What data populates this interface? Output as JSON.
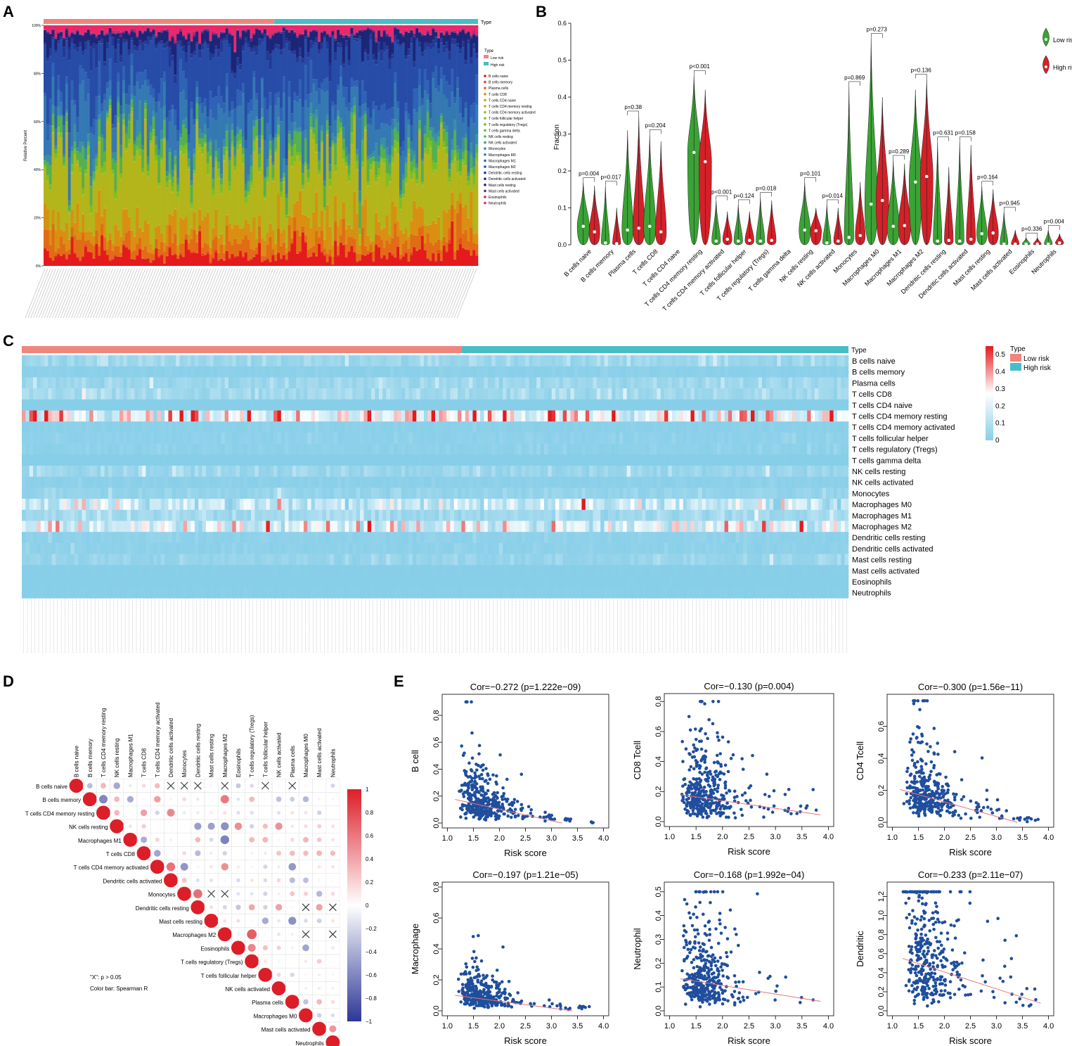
{
  "figure": {
    "panel_labels": [
      "A",
      "B",
      "C",
      "D",
      "E"
    ],
    "cell_types": [
      "B cells naive",
      "B cells memory",
      "Plasma cells",
      "T cells CD8",
      "T cells CD4 naive",
      "T cells CD4 memory resting",
      "T cells CD4 memory activated",
      "T cells follicular helper",
      "T cells regulatory (Tregs)",
      "T cells gamma delta",
      "NK cells resting",
      "NK cells activated",
      "Monocytes",
      "Macrophages M0",
      "Macrophages M1",
      "Macrophages M2",
      "Dendritic cells resting",
      "Dendritic cells activated",
      "Mast cells resting",
      "Mast cells activated",
      "Eosinophils",
      "Neutrophils"
    ],
    "cell_colors": [
      "#e41a1c",
      "#e8452a",
      "#e26b16",
      "#d98f12",
      "#c9a515",
      "#b3b51b",
      "#a2bb1f",
      "#8fbf22",
      "#7cbe26",
      "#6aba2a",
      "#55b04e",
      "#42a07a",
      "#3a8fa0",
      "#3579b3",
      "#2f62b4",
      "#274ca8",
      "#223a95",
      "#1f2d83",
      "#1c2578",
      "#5a2b86",
      "#c2246d",
      "#e8296a"
    ],
    "group_colors": {
      "low": "#f0857c",
      "high": "#48bdc7"
    }
  },
  "chart_data": [
    {
      "panel": "A",
      "type": "bar",
      "subtype": "stacked-percent",
      "ylabel": "Relative Percent",
      "yticks": [
        "0%",
        "20%",
        "40%",
        "60%",
        "80%",
        "100%"
      ],
      "annotation_label": "Type",
      "legend_title": "Type",
      "legend_groups": [
        "Low risk",
        "High risk"
      ],
      "n_samples": 500,
      "low_risk_fraction": 0.53,
      "approx_mean_composition": {
        "B cells naive": 0.05,
        "Plasma cells": 0.05,
        "T cells CD8": 0.08,
        "T cells CD4 memory resting": 0.24,
        "T cells regulatory (Tregs)": 0.02,
        "NK cells resting": 0.05,
        "Monocytes": 0.03,
        "Macrophages M0": 0.14,
        "Macrophages M1": 0.06,
        "Macrophages M2": 0.18,
        "Dendritic cells resting": 0.02,
        "Mast cells resting": 0.05,
        "Neutrophils": 0.03
      }
    },
    {
      "panel": "B",
      "type": "violin",
      "ylabel": "Fraction",
      "ylim": [
        0,
        0.6
      ],
      "yticks": [
        "0.0",
        "0.1",
        "0.2",
        "0.3",
        "0.4",
        "0.5",
        "0.6"
      ],
      "legend": [
        "Low risk",
        "High risk"
      ],
      "series_colors": [
        "#3aa335",
        "#d42028"
      ],
      "categories": [
        "B cells naive",
        "B cells memory",
        "Plasma cells",
        "T cells CD8",
        "T cells CD4 naive",
        "T cells CD4 memory resting",
        "T cells CD4 memory activated",
        "T cells follicular helper",
        "T cells regulatory (Tregs)",
        "T cells gamma delta",
        "NK cells resting",
        "NK cells activated",
        "Monocytes",
        "Macrophages M0",
        "Macrophages M1",
        "Macrophages M2",
        "Dendritic cells resting",
        "Dendritic cells activated",
        "Mast cells resting",
        "Mast cells activated",
        "Eosinophils",
        "Neutrophils"
      ],
      "pvalues": [
        "p=0.004",
        "p=0.017",
        "p=0.38",
        "p=0.204",
        "",
        "p<0.001",
        "p<0.001",
        "p=0.124",
        "p=0.018",
        "",
        "p=0.101",
        "p=0.014",
        "p=0.869",
        "p=0.273",
        "p=0.289",
        "p=0.136",
        "p=0.631",
        "p=0.158",
        "p=0.164",
        "p=0.945",
        "p=0.336",
        "p=0.004"
      ],
      "low_median": [
        0.05,
        0.005,
        0.04,
        0.05,
        0,
        0.25,
        0.01,
        0.01,
        0.01,
        0,
        0.04,
        0.005,
        0.02,
        0.11,
        0.05,
        0.17,
        0.01,
        0.01,
        0.03,
        0.001,
        0.001,
        0.002
      ],
      "high_median": [
        0.035,
        0.003,
        0.045,
        0.035,
        0,
        0.225,
        0.015,
        0.012,
        0.012,
        0,
        0.038,
        0.01,
        0.025,
        0.12,
        0.052,
        0.185,
        0.012,
        0.015,
        0.032,
        0.001,
        0.001,
        0.005
      ],
      "low_max": [
        0.17,
        0.16,
        0.31,
        0.3,
        0,
        0.46,
        0.12,
        0.11,
        0.13,
        0,
        0.17,
        0.11,
        0.43,
        0.56,
        0.23,
        0.42,
        0.28,
        0.28,
        0.16,
        0.09,
        0.02,
        0.04
      ],
      "high_max": [
        0.16,
        0.1,
        0.35,
        0.28,
        0,
        0.42,
        0.09,
        0.09,
        0.12,
        0,
        0.1,
        0.1,
        0.17,
        0.4,
        0.22,
        0.45,
        0.21,
        0.27,
        0.15,
        0.04,
        0.02,
        0.03
      ]
    },
    {
      "panel": "C",
      "type": "heatmap",
      "rows": [
        "B cells naive",
        "B cells memory",
        "Plasma cells",
        "T cells CD8",
        "T cells CD4 naive",
        "T cells CD4 memory resting",
        "T cells CD4 memory activated",
        "T cells follicular helper",
        "T cells regulatory (Tregs)",
        "T cells gamma delta",
        "NK cells resting",
        "NK cells activated",
        "Monocytes",
        "Macrophages M0",
        "Macrophages M1",
        "Macrophages M2",
        "Dendritic cells resting",
        "Dendritic cells activated",
        "Mast cells resting",
        "Mast cells activated",
        "Eosinophils",
        "Neutrophils"
      ],
      "row_mean": [
        0.05,
        0.01,
        0.05,
        0.06,
        0,
        0.24,
        0.01,
        0.015,
        0.015,
        0,
        0.045,
        0.01,
        0.03,
        0.13,
        0.06,
        0.18,
        0.015,
        0.015,
        0.035,
        0.002,
        0.001,
        0.003
      ],
      "annotation_label": "Type",
      "legend_title": "Type",
      "legend_groups": [
        "Low risk",
        "High risk"
      ],
      "colorbar_ticks": [
        "0.5",
        "0.4",
        "0.3",
        "0.2",
        "0.1",
        "0"
      ],
      "color_scale": [
        "#87cee8",
        "#ffffff",
        "#e31a1c"
      ],
      "range": [
        0,
        0.55
      ],
      "n_samples": 500
    },
    {
      "panel": "D",
      "type": "correlation-matrix",
      "order": [
        "B cells naive",
        "B cells memory",
        "T cells CD4 memory resting",
        "NK cells resting",
        "Macrophages M1",
        "T cells CD8",
        "T cells CD4 memory activated",
        "Dendritic cells activated",
        "Monocytes",
        "Dendritic cells resting",
        "Mast cells resting",
        "Macrophages M2",
        "Eosinophils",
        "T cells regulatory (Tregs)",
        "T cells follicular helper",
        "NK cells activated",
        "Plasma cells",
        "Macrophages M0",
        "Mast cells activated",
        "Neutrophils"
      ],
      "note_x": "\"X\": p > 0.05",
      "note_colorbar": "Color bar: Spearman R",
      "colorbar_ticks": [
        "1",
        "0.8",
        "0.6",
        "0.4",
        "0.2",
        "0",
        "−0.2",
        "−0.4",
        "−0.6",
        "−0.8",
        "−1"
      ],
      "range": [
        -1,
        1
      ]
    },
    {
      "panel": "E",
      "type": "scatter",
      "xlabel": "Risk score",
      "plots": [
        {
          "ylabel": "B cell",
          "title": "Cor=−0.272 (p=1.222e−09)",
          "xlim": [
            0.9,
            4.1
          ],
          "ylim": [
            0,
            0.92
          ],
          "yticks": [
            0,
            0.2,
            0.4,
            0.6,
            0.8
          ],
          "fit": [
            [
              1.15,
              0.175
            ],
            [
              3.2,
              0.0
            ]
          ],
          "ymax": 0.9,
          "seed": 11
        },
        {
          "ylabel": "CD8 Tcell",
          "title": "Cor=−0.130 (p=0.004)",
          "xlim": [
            0.9,
            4.1
          ],
          "ylim": [
            0,
            0.82
          ],
          "yticks": [
            0,
            0.2,
            0.4,
            0.6,
            0.8
          ],
          "fit": [
            [
              1.2,
              0.18
            ],
            [
              3.85,
              0.045
            ]
          ],
          "ymax": 0.8,
          "seed": 22
        },
        {
          "ylabel": "CD4 Tcell",
          "title": "Cor=−0.300 (p=1.56e−11)",
          "xlim": [
            0.9,
            4.1
          ],
          "ylim": [
            0,
            0.77
          ],
          "yticks": [
            0,
            0.2,
            0.4,
            0.6
          ],
          "fit": [
            [
              1.15,
              0.205
            ],
            [
              3.4,
              0.0
            ]
          ],
          "ymax": 0.76,
          "seed": 33
        },
        {
          "ylabel": "Macrophage",
          "title": "Cor=−0.197 (p=1.21e−05)",
          "xlim": [
            0.9,
            4.1
          ],
          "ylim": [
            0,
            0.8
          ],
          "yticks": [
            0,
            0.2,
            0.4,
            0.6,
            0.8
          ],
          "fit": [
            [
              1.15,
              0.1
            ],
            [
              3.4,
              0.0
            ]
          ],
          "ymax": 0.79,
          "seed": 44
        },
        {
          "ylabel": "Neutrophil",
          "title": "Cor=−0.168 (p=1.992e−04)",
          "xlim": [
            0.9,
            4.1
          ],
          "ylim": [
            0,
            0.52
          ],
          "yticks": [
            0,
            0.1,
            0.2,
            0.3,
            0.4,
            0.5
          ],
          "fit": [
            [
              1.2,
              0.135
            ],
            [
              3.85,
              0.04
            ]
          ],
          "ymax": 0.5,
          "seed": 55
        },
        {
          "ylabel": "Dendritic",
          "title": "Cor=−0.233 (p=2.11e−07)",
          "xlim": [
            0.9,
            4.1
          ],
          "ylim": [
            0,
            1.3
          ],
          "yticks": [
            0,
            0.2,
            0.4,
            0.6,
            0.8,
            1.0,
            1.2
          ],
          "fit": [
            [
              1.2,
              0.55
            ],
            [
              3.85,
              0.08
            ]
          ],
          "ymax": 1.25,
          "seed": 66
        }
      ],
      "xticks": [
        "1.0",
        "1.5",
        "2.0",
        "2.5",
        "3.0",
        "3.5",
        "4.0"
      ]
    }
  ]
}
